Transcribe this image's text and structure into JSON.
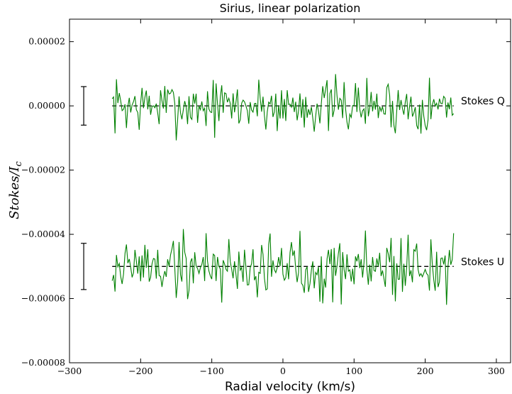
{
  "chart_data": {
    "type": "line",
    "title": "Sirius, linear polarization",
    "xlabel": "Radial velocity (km/s)",
    "ylabel": "Stokes/I",
    "ylabel_sub": "c",
    "xlim": [
      -300,
      320
    ],
    "ylim": [
      -8e-05,
      2.7e-05
    ],
    "xticks": [
      -300,
      -200,
      -100,
      0,
      100,
      200,
      300
    ],
    "xtick_labels": [
      "−300",
      "−200",
      "−100",
      "0",
      "100",
      "200",
      "300"
    ],
    "yticks": [
      2e-05,
      0.0,
      -2e-05,
      -4e-05,
      -6e-05,
      -8e-05
    ],
    "ytick_labels": [
      "0.00002",
      "0.00000",
      "−0.00002",
      "−0.00004",
      "−0.00006",
      "−0.00008"
    ],
    "line_color": "#008000",
    "x_range": [
      -240,
      240
    ],
    "x_step": 2,
    "series": [
      {
        "name": "Stokes Q",
        "label": "Stokes Q",
        "offset": 0.0,
        "noise_amplitude": 6e-06,
        "seed": 7,
        "error_bar": {
          "x": -280,
          "center": 0.0,
          "half": 6e-06
        }
      },
      {
        "name": "Stokes U",
        "label": "Stokes U",
        "offset": -5e-05,
        "noise_amplitude": 7.5e-06,
        "seed": 19,
        "error_bar": {
          "x": -280,
          "center": -5e-05,
          "half": 7.2e-06
        }
      }
    ]
  }
}
